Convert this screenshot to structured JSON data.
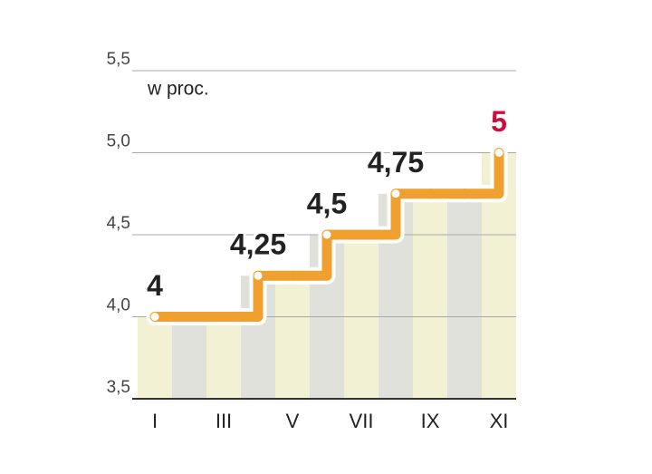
{
  "chart_data": {
    "type": "step",
    "annotation": "w proc.",
    "categories": [
      "I",
      null,
      "III",
      null,
      "V",
      null,
      "VII",
      null,
      "IX",
      null,
      "XI"
    ],
    "values": [
      4,
      4,
      4,
      4.25,
      4.25,
      4.5,
      4.5,
      4.75,
      4.75,
      4.75,
      5
    ],
    "value_labels": [
      "4",
      null,
      null,
      "4,25",
      null,
      "4,5",
      null,
      "4,75",
      null,
      null,
      "5"
    ],
    "color": "#f0a02e",
    "column_colors": [
      "#f3f1d4",
      "#e1e1dc"
    ],
    "last_label_color": "#c8103e",
    "ylim": [
      3.5,
      5.5
    ],
    "yticks": [
      {
        "value": 3.5,
        "label": "3,5"
      },
      {
        "value": 4.0,
        "label": "4,0"
      },
      {
        "value": 4.5,
        "label": "4,5"
      },
      {
        "value": 5.0,
        "label": "5,0"
      },
      {
        "value": 5.5,
        "label": "5,5"
      }
    ],
    "grid": true
  }
}
